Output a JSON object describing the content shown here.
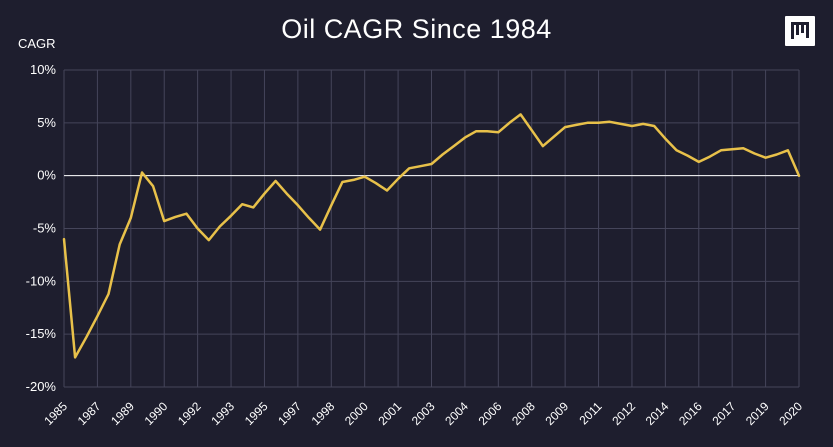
{
  "chart_data": {
    "type": "line",
    "title": "Oil CAGR Since 1984",
    "ylabel": "CAGR",
    "xlabel": "",
    "ylim": [
      -20,
      10
    ],
    "y_ticks": [
      "10%",
      "5%",
      "0%",
      "-5%",
      "-10%",
      "-15%",
      "-20%"
    ],
    "y_tick_values": [
      10,
      5,
      0,
      -5,
      -10,
      -15,
      -20
    ],
    "x_tick_labels": [
      "1985",
      "1987",
      "1989",
      "1990",
      "1992",
      "1993",
      "1995",
      "1997",
      "1998",
      "2000",
      "2001",
      "2003",
      "2004",
      "2006",
      "2008",
      "2009",
      "2011",
      "2012",
      "2014",
      "2016",
      "2017",
      "2019",
      "2020"
    ],
    "grid": true,
    "zero_line": true,
    "series": [
      {
        "color": "#e8c14a",
        "values": [
          -6.0,
          -17.2,
          -15.3,
          -13.3,
          -11.2,
          -6.5,
          -4.0,
          0.3,
          -1.0,
          -4.3,
          -3.9,
          -3.6,
          -5.0,
          -6.1,
          -4.8,
          -3.8,
          -2.7,
          -3.0,
          -1.7,
          -0.5,
          -1.7,
          -2.8,
          -4.0,
          -5.1,
          -2.8,
          -0.6,
          -0.4,
          -0.1,
          -0.7,
          -1.4,
          -0.3,
          0.7,
          0.9,
          1.1,
          2.0,
          2.8,
          3.6,
          4.2,
          4.2,
          4.1,
          5.0,
          5.8,
          4.3,
          2.8,
          3.7,
          4.6,
          4.8,
          5.0,
          5.0,
          5.1,
          4.9,
          4.7,
          4.9,
          4.7,
          3.5,
          2.4,
          1.9,
          1.3,
          1.8,
          2.4,
          2.5,
          2.6,
          2.1,
          1.7,
          2.0,
          2.4,
          0.0
        ]
      }
    ]
  },
  "colors": {
    "background": "#1e1e2e",
    "grid": "#45455a",
    "text": "#ffffff",
    "line": "#e8c14a"
  },
  "logo": {
    "icon": "bar-logo-icon"
  }
}
